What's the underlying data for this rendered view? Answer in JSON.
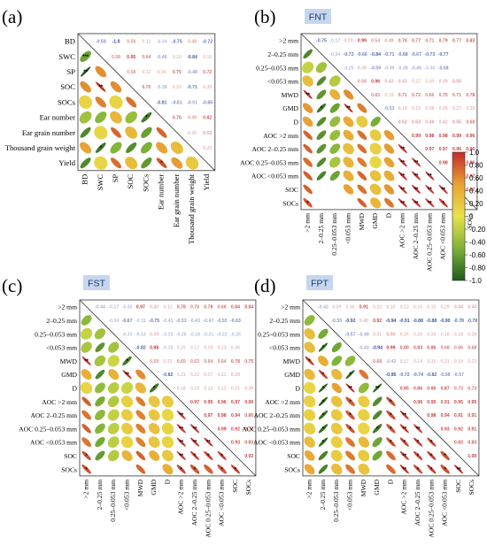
{
  "chart_data": [
    {
      "type": "heatmap",
      "panel": "(a)",
      "tag": "",
      "variables": [
        "BD",
        "SWC",
        "SP",
        "SOC",
        "SOCs",
        "Ear number",
        "Ear grain number",
        "Thousand grain weight",
        "Yield"
      ],
      "lower_signif": [
        [
          1,
          0,
          "***"
        ]
      ],
      "upper": [
        [
          0,
          1,
          -0.58
        ],
        [
          0,
          2,
          -1.0
        ],
        [
          0,
          3,
          0.58
        ],
        [
          0,
          4,
          0.11
        ],
        [
          0,
          5,
          -0.34
        ],
        [
          0,
          6,
          -0.75
        ],
        [
          0,
          7,
          0.48
        ],
        [
          0,
          8,
          -0.72
        ],
        [
          1,
          2,
          0.58
        ],
        [
          1,
          3,
          0.95
        ],
        [
          1,
          4,
          0.64
        ],
        [
          1,
          5,
          -0.46
        ],
        [
          1,
          6,
          0.1
        ],
        [
          1,
          7,
          -0.84
        ],
        [
          1,
          8,
          0.1
        ],
        [
          2,
          3,
          0.58
        ],
        [
          2,
          4,
          0.11
        ],
        [
          2,
          5,
          0.34
        ],
        [
          2,
          6,
          0.75
        ],
        [
          2,
          7,
          -0.48
        ],
        [
          2,
          8,
          0.72
        ],
        [
          3,
          4,
          0.7
        ],
        [
          3,
          5,
          -0.38
        ],
        [
          3,
          6,
          0.33
        ],
        [
          3,
          7,
          -0.71
        ],
        [
          3,
          8,
          0.3
        ],
        [
          4,
          5,
          -0.81
        ],
        [
          4,
          6,
          -0.61
        ],
        [
          4,
          7,
          -0.51
        ],
        [
          4,
          8,
          -0.65
        ],
        [
          5,
          6,
          0.76
        ],
        [
          5,
          7,
          0.49
        ],
        [
          5,
          8,
          0.82
        ],
        [
          6,
          7,
          0.3
        ],
        [
          6,
          8,
          0.53
        ],
        [
          7,
          8,
          0.2
        ]
      ]
    },
    {
      "type": "heatmap",
      "panel": "(b)",
      "tag": "FNT",
      "variables": [
        ">2 mm",
        "2–0.25 mm",
        "0.25–0.053 mm",
        "<0.053 mm",
        "MWD",
        "GMD",
        "D",
        "AOC >2 mm",
        "AOC 2–0.25 mm",
        "AOC 0.25–0.053 mm",
        "AOC <0.053 mm",
        "SOC",
        "SOCs"
      ],
      "upper": [
        [
          0,
          1,
          -0.75
        ],
        [
          0,
          2,
          -0.17
        ],
        [
          0,
          3,
          0.29
        ],
        [
          0,
          4,
          0.99
        ],
        [
          0,
          5,
          0.54
        ],
        [
          0,
          6,
          0.49
        ],
        [
          0,
          7,
          0.76
        ],
        [
          0,
          8,
          0.77
        ],
        [
          0,
          9,
          0.71
        ],
        [
          0,
          10,
          0.79
        ],
        [
          0,
          11,
          0.77
        ],
        [
          0,
          12,
          0.83
        ],
        [
          1,
          2,
          -0.34
        ],
        [
          1,
          3,
          -0.72
        ],
        [
          1,
          4,
          -0.66
        ],
        [
          1,
          5,
          -0.84
        ],
        [
          1,
          6,
          -0.71
        ],
        [
          1,
          7,
          -0.68
        ],
        [
          1,
          8,
          -0.67
        ],
        [
          1,
          9,
          -0.73
        ],
        [
          1,
          10,
          -0.77
        ],
        [
          2,
          3,
          -0.25
        ],
        [
          2,
          4,
          0.39
        ],
        [
          2,
          5,
          -0.59
        ],
        [
          2,
          6,
          -0.39
        ],
        [
          2,
          7,
          -0.38
        ],
        [
          2,
          8,
          -0.45
        ],
        [
          2,
          9,
          -0.3
        ],
        [
          2,
          10,
          -0.58
        ],
        [
          3,
          4,
          0.58
        ],
        [
          3,
          5,
          0.96
        ],
        [
          3,
          6,
          0.43
        ],
        [
          3,
          7,
          0.43
        ],
        [
          3,
          8,
          0.27
        ],
        [
          3,
          9,
          0.35
        ],
        [
          3,
          10,
          0.39
        ],
        [
          3,
          11,
          0.5
        ],
        [
          4,
          5,
          0.65
        ],
        [
          4,
          6,
          0.19
        ],
        [
          4,
          7,
          0.71
        ],
        [
          4,
          8,
          0.72
        ],
        [
          4,
          9,
          0.66
        ],
        [
          4,
          10,
          0.75
        ],
        [
          4,
          11,
          0.71
        ],
        [
          4,
          12,
          0.78
        ],
        [
          5,
          6,
          -0.53
        ],
        [
          5,
          7,
          0.19
        ],
        [
          5,
          8,
          0.15
        ],
        [
          5,
          9,
          0.08
        ],
        [
          5,
          10,
          0.26
        ],
        [
          5,
          11,
          0.27
        ],
        [
          5,
          12,
          0.35
        ],
        [
          6,
          7,
          0.52
        ],
        [
          6,
          8,
          0.53
        ],
        [
          6,
          9,
          0.49
        ],
        [
          6,
          10,
          0.42
        ],
        [
          6,
          11,
          0.55
        ],
        [
          6,
          12,
          0.68
        ],
        [
          7,
          8,
          0.99
        ],
        [
          7,
          9,
          0.98
        ],
        [
          7,
          10,
          0.98
        ],
        [
          7,
          11,
          0.99
        ],
        [
          7,
          12,
          0.96
        ],
        [
          8,
          9,
          0.97
        ],
        [
          8,
          10,
          0.97
        ],
        [
          8,
          11,
          0.96
        ],
        [
          8,
          12,
          0.96
        ],
        [
          9,
          10,
          0.98
        ],
        [
          9,
          11,
          0.97
        ],
        [
          9,
          12,
          0.96
        ],
        [
          10,
          11,
          0.97
        ],
        [
          10,
          12,
          0.92
        ],
        [
          11,
          12,
          0.97
        ]
      ]
    },
    {
      "type": "heatmap",
      "panel": "(c)",
      "tag": "FST",
      "variables": [
        ">2 mm",
        "2–0.25 mm",
        "0.25–0.053 mm",
        "<0.053 mm",
        "MWD",
        "GMD",
        "D",
        "AOC >2 mm",
        "AOC 2–0.25 mm",
        "AOC 0.25–0.053 mm",
        "AOC <0.053 mm",
        "SOC",
        "SOCs"
      ],
      "upper": [
        [
          0,
          1,
          -0.44
        ],
        [
          0,
          2,
          -0.17
        ],
        [
          0,
          3,
          -0.3
        ],
        [
          0,
          4,
          0.97
        ],
        [
          0,
          5,
          0.4
        ],
        [
          0,
          6,
          0.11
        ],
        [
          0,
          7,
          0.78
        ],
        [
          0,
          8,
          0.7
        ],
        [
          0,
          9,
          0.78
        ],
        [
          0,
          10,
          0.68
        ],
        [
          0,
          11,
          0.84
        ],
        [
          0,
          12,
          0.84
        ],
        [
          1,
          2,
          -0.34
        ],
        [
          1,
          3,
          -0.67
        ],
        [
          1,
          4,
          -0.31
        ],
        [
          1,
          5,
          -0.75
        ],
        [
          1,
          6,
          -0.41
        ],
        [
          1,
          7,
          -0.53
        ],
        [
          1,
          8,
          -0.43
        ],
        [
          1,
          9,
          -0.47
        ],
        [
          1,
          10,
          -0.55
        ],
        [
          1,
          11,
          -0.63
        ],
        [
          2,
          3,
          -0.33
        ],
        [
          2,
          4,
          -0.14
        ],
        [
          2,
          5,
          0.39
        ],
        [
          2,
          6,
          -0.23
        ],
        [
          2,
          7,
          -0.26
        ],
        [
          2,
          8,
          -0.18
        ],
        [
          2,
          9,
          -0.21
        ],
        [
          2,
          10,
          -0.22
        ],
        [
          2,
          11,
          -0.25
        ],
        [
          3,
          4,
          -0.82
        ],
        [
          3,
          5,
          0.98
        ],
        [
          3,
          6,
          -0.15
        ],
        [
          3,
          7,
          0.15
        ],
        [
          3,
          8,
          0.17
        ],
        [
          3,
          9,
          0.19
        ],
        [
          3,
          10,
          0.13
        ],
        [
          3,
          11,
          0.35
        ],
        [
          4,
          5,
          0.59
        ],
        [
          4,
          6,
          0.33
        ],
        [
          4,
          7,
          0.65
        ],
        [
          4,
          8,
          0.63
        ],
        [
          4,
          9,
          0.64
        ],
        [
          4,
          10,
          0.64
        ],
        [
          4,
          11,
          0.78
        ],
        [
          4,
          12,
          0.75
        ],
        [
          5,
          6,
          -0.82
        ],
        [
          5,
          7,
          0.21
        ],
        [
          5,
          8,
          0.22
        ],
        [
          5,
          9,
          0.27
        ],
        [
          5,
          10,
          0.21
        ],
        [
          5,
          11,
          0.39
        ],
        [
          6,
          7,
          0.18
        ],
        [
          6,
          8,
          0.1
        ],
        [
          6,
          9,
          0.12
        ],
        [
          6,
          10,
          0.12
        ],
        [
          6,
          11,
          0.21
        ],
        [
          6,
          12,
          0.39
        ],
        [
          7,
          8,
          0.97
        ],
        [
          7,
          9,
          0.95
        ],
        [
          7,
          10,
          0.96
        ],
        [
          7,
          11,
          0.97
        ],
        [
          7,
          12,
          0.89
        ],
        [
          8,
          9,
          0.97
        ],
        [
          8,
          10,
          0.98
        ],
        [
          8,
          11,
          0.94
        ],
        [
          8,
          12,
          0.8
        ],
        [
          9,
          10,
          0.99
        ],
        [
          9,
          11,
          0.92
        ],
        [
          9,
          12,
          0.77
        ],
        [
          10,
          11,
          0.93
        ],
        [
          10,
          12,
          0.83
        ],
        [
          11,
          12,
          0.92
        ]
      ]
    },
    {
      "type": "heatmap",
      "panel": "(d)",
      "tag": "FPT",
      "variables": [
        ">2 mm",
        "2–0.25 mm",
        "0.25–0.053 mm",
        "<0.053 mm",
        "MWD",
        "GMD",
        "D",
        "AOC >2 mm",
        "AOC 2–0.25 mm",
        "AOC 0.25–0.053 mm",
        "AOC <0.053 mm",
        "SOC",
        "SOCs"
      ],
      "upper": [
        [
          0,
          1,
          -0.42
        ],
        [
          0,
          2,
          0.29
        ],
        [
          0,
          3,
          0.3
        ],
        [
          0,
          4,
          0.91
        ],
        [
          0,
          5,
          0.32
        ],
        [
          0,
          6,
          0.1
        ],
        [
          0,
          7,
          0.13
        ],
        [
          0,
          8,
          0.15
        ],
        [
          0,
          9,
          0.15
        ],
        [
          0,
          10,
          0.29
        ],
        [
          0,
          11,
          0.44
        ],
        [
          0,
          12,
          0.44
        ],
        [
          1,
          2,
          -0.55
        ],
        [
          1,
          3,
          -0.92
        ],
        [
          1,
          4,
          0.4
        ],
        [
          1,
          5,
          0.92
        ],
        [
          1,
          6,
          -0.94
        ],
        [
          1,
          7,
          -0.91
        ],
        [
          1,
          8,
          -0.88
        ],
        [
          1,
          9,
          -0.88
        ],
        [
          1,
          10,
          -0.9
        ],
        [
          1,
          11,
          -0.78
        ],
        [
          1,
          12,
          -0.78
        ],
        [
          2,
          3,
          -0.57
        ],
        [
          2,
          4,
          -0.49
        ],
        [
          2,
          5,
          0.31
        ],
        [
          2,
          6,
          0.5
        ],
        [
          2,
          7,
          0.25
        ],
        [
          2,
          8,
          0.2
        ],
        [
          2,
          9,
          0.2
        ],
        [
          2,
          10,
          0.16
        ],
        [
          2,
          11,
          0.18
        ],
        [
          2,
          12,
          0.28
        ],
        [
          3,
          4,
          -0.43
        ],
        [
          3,
          5,
          -0.94
        ],
        [
          3,
          6,
          0.99
        ],
        [
          3,
          7,
          0.8
        ],
        [
          3,
          8,
          0.83
        ],
        [
          3,
          9,
          0.86
        ],
        [
          3,
          10,
          0.68
        ],
        [
          3,
          11,
          0.66
        ],
        [
          3,
          12,
          0.68
        ],
        [
          4,
          5,
          0.68
        ],
        [
          4,
          6,
          -0.42
        ],
        [
          4,
          7,
          0.17
        ],
        [
          4,
          8,
          0.14
        ],
        [
          4,
          9,
          0.11
        ],
        [
          4,
          10,
          0.31
        ],
        [
          4,
          11,
          0.19
        ],
        [
          4,
          12,
          0.23
        ],
        [
          5,
          6,
          -0.95
        ],
        [
          5,
          7,
          -0.72
        ],
        [
          5,
          8,
          -0.74
        ],
        [
          5,
          9,
          -0.82
        ],
        [
          5,
          10,
          -0.58
        ],
        [
          5,
          11,
          -0.57
        ],
        [
          6,
          7,
          0.85
        ],
        [
          6,
          8,
          0.86
        ],
        [
          6,
          9,
          0.86
        ],
        [
          6,
          10,
          0.87
        ],
        [
          6,
          11,
          0.73
        ],
        [
          6,
          12,
          0.73
        ],
        [
          7,
          8,
          0.96
        ],
        [
          7,
          9,
          0.95
        ],
        [
          7,
          10,
          0.91
        ],
        [
          7,
          11,
          0.95
        ],
        [
          7,
          12,
          0.95
        ],
        [
          8,
          9,
          0.98
        ],
        [
          8,
          10,
          0.94
        ],
        [
          8,
          11,
          0.91
        ],
        [
          8,
          12,
          0.91
        ],
        [
          9,
          10,
          0.93
        ],
        [
          9,
          11,
          0.92
        ],
        [
          9,
          12,
          0.91
        ],
        [
          10,
          11,
          0.83
        ],
        [
          10,
          12,
          0.83
        ],
        [
          11,
          12,
          1.0
        ]
      ]
    }
  ],
  "colorbar": {
    "ticks": [
      "1.0",
      "0.80",
      "0.60",
      "0.40",
      "0.20",
      "0",
      "-0.20",
      "-0.40",
      "-0.60",
      "-0.80",
      "-1.0"
    ],
    "colors": {
      "pos_high": "#c42a2a",
      "pos_mid": "#e8a234",
      "zero": "#e8e24a",
      "neg_mid": "#7fb23a",
      "neg_high": "#1e5a1e",
      "num_pos": "#c43a3a",
      "num_neg": "#2c3f9a"
    }
  }
}
